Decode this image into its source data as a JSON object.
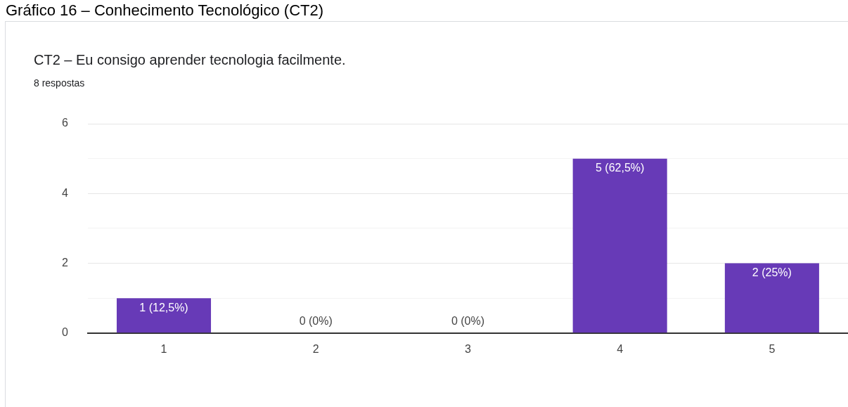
{
  "chart_data": {
    "type": "bar",
    "title": "CT2 – Eu consigo aprender tecnologia facilmente.",
    "subtitle": "8 respostas",
    "annotations": [
      "Gráfico 16 – Conhecimento Tecnológico (CT2)"
    ],
    "categories": [
      "1",
      "2",
      "3",
      "4",
      "5"
    ],
    "values": [
      1,
      0,
      0,
      5,
      2
    ],
    "value_labels": [
      "1 (12,5%)",
      "0 (0%)",
      "0 (0%)",
      "5 (62,5%)",
      "2 (25%)"
    ],
    "color": "#673ab7",
    "ylim": [
      0,
      6
    ],
    "yticks": [
      0,
      {
        "value": 1,
        "label": null
      },
      2,
      {
        "value": 3,
        "label": null
      },
      4,
      {
        "value": 5,
        "label": null
      },
      6
    ],
    "grid": "y",
    "legend": false
  }
}
